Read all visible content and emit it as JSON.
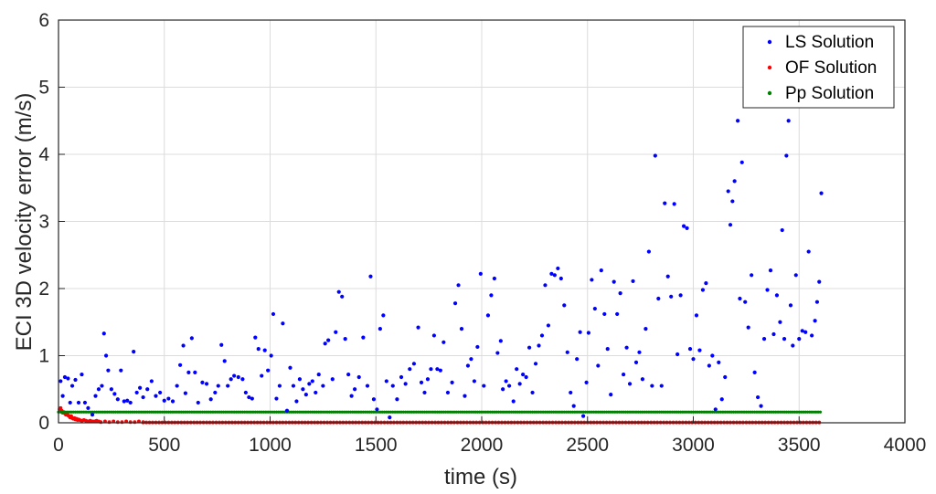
{
  "chart_data": {
    "type": "scatter",
    "xlabel": "time (s)",
    "ylabel": "ECI 3D velocity error (m/s)",
    "xlim": [
      0,
      4000
    ],
    "ylim": [
      0,
      6
    ],
    "xticks": [
      "0",
      "500",
      "1000",
      "1500",
      "2000",
      "2500",
      "3000",
      "3500",
      "4000"
    ],
    "yticks": [
      "0",
      "1",
      "2",
      "3",
      "4",
      "5",
      "6"
    ],
    "grid": true,
    "legend_position": "top-right",
    "series": [
      {
        "name": "LS Solution",
        "color": "#0000ff",
        "points": [
          [
            10,
            0.62
          ],
          [
            20,
            0.4
          ],
          [
            30,
            0.68
          ],
          [
            45,
            0.66
          ],
          [
            55,
            0.3
          ],
          [
            65,
            0.55
          ],
          [
            80,
            0.64
          ],
          [
            95,
            0.3
          ],
          [
            110,
            0.72
          ],
          [
            125,
            0.3
          ],
          [
            140,
            0.22
          ],
          [
            160,
            0.12
          ],
          [
            175,
            0.4
          ],
          [
            190,
            0.5
          ],
          [
            205,
            0.55
          ],
          [
            215,
            1.33
          ],
          [
            225,
            1.0
          ],
          [
            235,
            0.78
          ],
          [
            250,
            0.5
          ],
          [
            265,
            0.43
          ],
          [
            280,
            0.35
          ],
          [
            295,
            0.78
          ],
          [
            310,
            0.32
          ],
          [
            325,
            0.33
          ],
          [
            340,
            0.3
          ],
          [
            355,
            1.06
          ],
          [
            370,
            0.45
          ],
          [
            385,
            0.52
          ],
          [
            400,
            0.38
          ],
          [
            420,
            0.5
          ],
          [
            440,
            0.62
          ],
          [
            460,
            0.4
          ],
          [
            480,
            0.45
          ],
          [
            500,
            0.33
          ],
          [
            520,
            0.36
          ],
          [
            540,
            0.32
          ],
          [
            560,
            0.55
          ],
          [
            575,
            0.86
          ],
          [
            590,
            1.15
          ],
          [
            600,
            0.44
          ],
          [
            615,
            0.75
          ],
          [
            630,
            1.26
          ],
          [
            645,
            0.75
          ],
          [
            660,
            0.3
          ],
          [
            680,
            0.6
          ],
          [
            700,
            0.58
          ],
          [
            720,
            0.35
          ],
          [
            740,
            0.45
          ],
          [
            755,
            0.55
          ],
          [
            770,
            1.16
          ],
          [
            785,
            0.92
          ],
          [
            800,
            0.55
          ],
          [
            815,
            0.65
          ],
          [
            830,
            0.7
          ],
          [
            850,
            0.68
          ],
          [
            870,
            0.65
          ],
          [
            885,
            0.45
          ],
          [
            900,
            0.38
          ],
          [
            915,
            0.36
          ],
          [
            930,
            1.27
          ],
          [
            945,
            1.1
          ],
          [
            960,
            0.7
          ],
          [
            975,
            1.08
          ],
          [
            990,
            0.78
          ],
          [
            1005,
            1.0
          ],
          [
            1015,
            1.62
          ],
          [
            1030,
            0.36
          ],
          [
            1045,
            0.55
          ],
          [
            1060,
            1.48
          ],
          [
            1080,
            0.18
          ],
          [
            1095,
            0.82
          ],
          [
            1110,
            0.55
          ],
          [
            1125,
            0.32
          ],
          [
            1140,
            0.65
          ],
          [
            1155,
            0.5
          ],
          [
            1170,
            0.42
          ],
          [
            1185,
            0.58
          ],
          [
            1200,
            0.62
          ],
          [
            1215,
            0.45
          ],
          [
            1230,
            0.72
          ],
          [
            1250,
            0.55
          ],
          [
            1260,
            1.18
          ],
          [
            1275,
            1.23
          ],
          [
            1295,
            0.65
          ],
          [
            1310,
            1.35
          ],
          [
            1325,
            1.95
          ],
          [
            1340,
            1.88
          ],
          [
            1355,
            1.25
          ],
          [
            1370,
            0.72
          ],
          [
            1385,
            0.4
          ],
          [
            1400,
            0.5
          ],
          [
            1420,
            0.68
          ],
          [
            1440,
            1.27
          ],
          [
            1460,
            0.55
          ],
          [
            1475,
            2.18
          ],
          [
            1490,
            0.35
          ],
          [
            1505,
            0.2
          ],
          [
            1520,
            1.4
          ],
          [
            1535,
            1.6
          ],
          [
            1550,
            0.62
          ],
          [
            1565,
            0.08
          ],
          [
            1580,
            0.55
          ],
          [
            1600,
            0.35
          ],
          [
            1620,
            0.68
          ],
          [
            1640,
            0.58
          ],
          [
            1660,
            0.8
          ],
          [
            1680,
            0.88
          ],
          [
            1700,
            1.42
          ],
          [
            1715,
            0.6
          ],
          [
            1730,
            0.45
          ],
          [
            1745,
            0.65
          ],
          [
            1760,
            0.8
          ],
          [
            1775,
            1.3
          ],
          [
            1790,
            0.8
          ],
          [
            1805,
            0.78
          ],
          [
            1820,
            1.2
          ],
          [
            1840,
            0.45
          ],
          [
            1860,
            0.6
          ],
          [
            1875,
            1.78
          ],
          [
            1890,
            2.05
          ],
          [
            1905,
            1.4
          ],
          [
            1920,
            0.4
          ],
          [
            1935,
            0.85
          ],
          [
            1950,
            0.95
          ],
          [
            1965,
            0.62
          ],
          [
            1980,
            1.13
          ],
          [
            1995,
            2.22
          ],
          [
            2010,
            0.55
          ],
          [
            2030,
            1.6
          ],
          [
            2045,
            1.9
          ],
          [
            2060,
            2.15
          ],
          [
            2075,
            1.04
          ],
          [
            2090,
            1.22
          ],
          [
            2100,
            0.5
          ],
          [
            2115,
            0.62
          ],
          [
            2130,
            0.55
          ],
          [
            2150,
            0.32
          ],
          [
            2165,
            0.8
          ],
          [
            2180,
            0.58
          ],
          [
            2195,
            0.72
          ],
          [
            2210,
            0.68
          ],
          [
            2225,
            1.12
          ],
          [
            2240,
            0.45
          ],
          [
            2255,
            0.88
          ],
          [
            2270,
            1.15
          ],
          [
            2285,
            1.3
          ],
          [
            2300,
            2.05
          ],
          [
            2315,
            1.45
          ],
          [
            2330,
            2.22
          ],
          [
            2345,
            2.2
          ],
          [
            2360,
            2.3
          ],
          [
            2375,
            2.15
          ],
          [
            2390,
            1.75
          ],
          [
            2405,
            1.05
          ],
          [
            2420,
            0.45
          ],
          [
            2435,
            0.25
          ],
          [
            2450,
            0.95
          ],
          [
            2465,
            1.35
          ],
          [
            2480,
            0.1
          ],
          [
            2495,
            0.6
          ],
          [
            2505,
            1.34
          ],
          [
            2520,
            2.13
          ],
          [
            2535,
            1.7
          ],
          [
            2550,
            0.85
          ],
          [
            2565,
            2.27
          ],
          [
            2580,
            1.62
          ],
          [
            2595,
            1.1
          ],
          [
            2610,
            0.42
          ],
          [
            2625,
            2.1
          ],
          [
            2640,
            1.62
          ],
          [
            2655,
            1.93
          ],
          [
            2670,
            0.72
          ],
          [
            2685,
            1.12
          ],
          [
            2700,
            0.58
          ],
          [
            2715,
            2.11
          ],
          [
            2730,
            0.9
          ],
          [
            2745,
            1.05
          ],
          [
            2760,
            0.65
          ],
          [
            2775,
            1.4
          ],
          [
            2790,
            2.55
          ],
          [
            2805,
            0.55
          ],
          [
            2820,
            3.98
          ],
          [
            2835,
            1.85
          ],
          [
            2850,
            0.55
          ],
          [
            2865,
            3.27
          ],
          [
            2880,
            2.18
          ],
          [
            2895,
            1.88
          ],
          [
            2910,
            3.26
          ],
          [
            2925,
            1.02
          ],
          [
            2940,
            1.9
          ],
          [
            2955,
            2.93
          ],
          [
            2970,
            2.9
          ],
          [
            2985,
            1.1
          ],
          [
            3000,
            0.95
          ],
          [
            3015,
            1.6
          ],
          [
            3030,
            1.08
          ],
          [
            3045,
            1.98
          ],
          [
            3060,
            2.08
          ],
          [
            3075,
            0.85
          ],
          [
            3090,
            1.0
          ],
          [
            3105,
            0.2
          ],
          [
            3120,
            0.9
          ],
          [
            3135,
            0.35
          ],
          [
            3150,
            0.68
          ],
          [
            3165,
            3.45
          ],
          [
            3175,
            2.95
          ],
          [
            3185,
            3.3
          ],
          [
            3195,
            3.6
          ],
          [
            3210,
            4.5
          ],
          [
            3220,
            1.85
          ],
          [
            3230,
            3.88
          ],
          [
            3245,
            1.8
          ],
          [
            3260,
            1.42
          ],
          [
            3275,
            2.2
          ],
          [
            3290,
            0.75
          ],
          [
            3305,
            0.38
          ],
          [
            3320,
            0.25
          ],
          [
            3335,
            1.25
          ],
          [
            3350,
            1.98
          ],
          [
            3365,
            2.27
          ],
          [
            3380,
            1.32
          ],
          [
            3395,
            1.9
          ],
          [
            3410,
            1.5
          ],
          [
            3420,
            2.87
          ],
          [
            3430,
            1.25
          ],
          [
            3440,
            3.98
          ],
          [
            3450,
            4.5
          ],
          [
            3460,
            1.75
          ],
          [
            3470,
            1.15
          ],
          [
            3485,
            2.2
          ],
          [
            3500,
            1.25
          ],
          [
            3515,
            1.37
          ],
          [
            3530,
            1.35
          ],
          [
            3545,
            2.55
          ],
          [
            3560,
            1.3
          ],
          [
            3575,
            1.52
          ],
          [
            3585,
            1.8
          ],
          [
            3595,
            2.1
          ],
          [
            3605,
            3.42
          ]
        ]
      },
      {
        "name": "OF Solution",
        "color": "#ff0000",
        "points": [
          [
            5,
            0.2
          ],
          [
            10,
            0.22
          ],
          [
            15,
            0.18
          ],
          [
            20,
            0.15
          ],
          [
            25,
            0.16
          ],
          [
            30,
            0.14
          ],
          [
            35,
            0.12
          ],
          [
            40,
            0.13
          ],
          [
            45,
            0.11
          ],
          [
            50,
            0.1
          ],
          [
            55,
            0.08
          ],
          [
            60,
            0.1
          ],
          [
            65,
            0.07
          ],
          [
            70,
            0.06
          ],
          [
            75,
            0.07
          ],
          [
            80,
            0.05
          ],
          [
            85,
            0.06
          ],
          [
            90,
            0.04
          ],
          [
            95,
            0.05
          ],
          [
            100,
            0.04
          ],
          [
            110,
            0.03
          ],
          [
            120,
            0.04
          ],
          [
            130,
            0.03
          ],
          [
            140,
            0.02
          ],
          [
            150,
            0.03
          ],
          [
            160,
            0.02
          ],
          [
            170,
            0.02
          ],
          [
            180,
            0.03
          ],
          [
            190,
            0.02
          ],
          [
            200,
            0.01
          ],
          [
            220,
            0.02
          ],
          [
            240,
            0.01
          ],
          [
            260,
            0.02
          ],
          [
            280,
            0.01
          ],
          [
            300,
            0.01
          ],
          [
            320,
            0.02
          ],
          [
            340,
            0.01
          ],
          [
            360,
            0.01
          ],
          [
            380,
            0.02
          ],
          [
            400,
            0.01
          ]
        ],
        "tail": {
          "from": 400,
          "to": 3600,
          "step": 15,
          "value": 0.005
        }
      },
      {
        "name": "Pp Solution",
        "color": "#008000",
        "start": 0,
        "end": 3600,
        "step": 10,
        "value": 0.16
      }
    ]
  }
}
